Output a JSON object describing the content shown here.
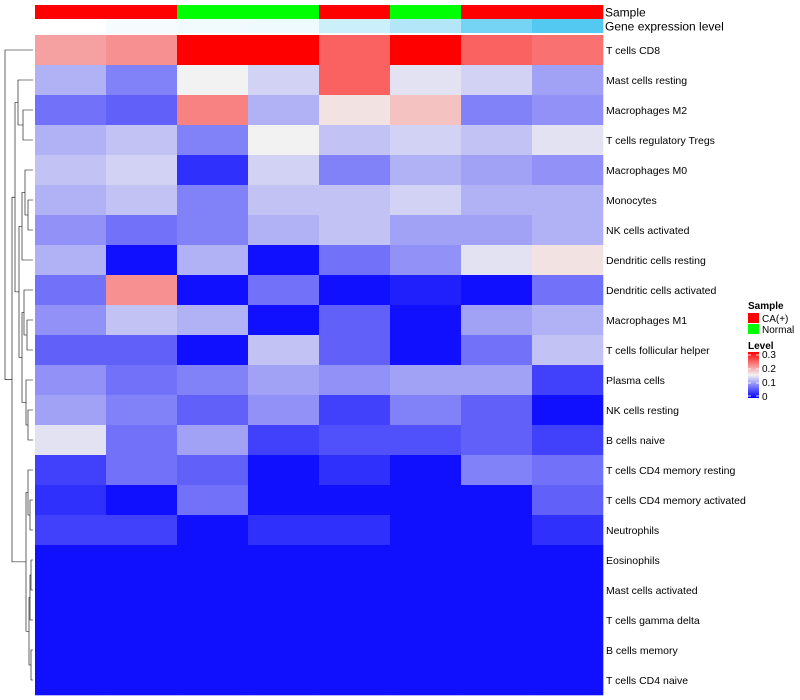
{
  "chart_data": {
    "type": "heatmap",
    "title": "",
    "annotation_tracks": [
      {
        "name": "Sample",
        "values": [
          "CA(+)",
          "CA(+)",
          "Normal",
          "Normal",
          "CA(+)",
          "Normal",
          "CA(+)",
          "CA(+)"
        ]
      },
      {
        "name": "Gene expression level",
        "values": [
          "0.00",
          "0.05",
          "0.08",
          "0.10",
          "0.30",
          "0.45",
          "0.80",
          "1.00"
        ]
      }
    ],
    "rows": [
      "T cells CD8",
      "Mast cells resting",
      "Macrophages M2",
      "T cells regulatory  Tregs",
      "Macrophages M0",
      "Monocytes",
      "NK cells activated",
      "Dendritic cells resting",
      "Dendritic cells activated",
      "Macrophages M1",
      "T cells follicular helper",
      "Plasma cells",
      "NK cells resting",
      "B cells naive",
      "T cells CD4 memory resting",
      "T cells CD4 memory activated",
      "Neutrophils",
      "Eosinophils",
      "Mast cells activated",
      "T cells gamma delta",
      "B cells memory",
      "T cells CD4 naive"
    ],
    "columns": 8,
    "values": [
      [
        0.2,
        0.21,
        0.3,
        0.3,
        0.24,
        0.3,
        0.24,
        0.23
      ],
      [
        0.11,
        0.08,
        0.15,
        0.13,
        0.24,
        0.14,
        0.13,
        0.1
      ],
      [
        0.07,
        0.06,
        0.22,
        0.11,
        0.16,
        0.18,
        0.08,
        0.09
      ],
      [
        0.11,
        0.12,
        0.08,
        0.15,
        0.12,
        0.13,
        0.12,
        0.14
      ],
      [
        0.12,
        0.13,
        0.03,
        0.13,
        0.08,
        0.11,
        0.1,
        0.09
      ],
      [
        0.11,
        0.12,
        0.08,
        0.12,
        0.12,
        0.13,
        0.11,
        0.11
      ],
      [
        0.09,
        0.07,
        0.08,
        0.11,
        0.12,
        0.1,
        0.1,
        0.11
      ],
      [
        0.11,
        0.01,
        0.11,
        0.01,
        0.07,
        0.09,
        0.14,
        0.16
      ],
      [
        0.07,
        0.21,
        0.01,
        0.07,
        0.01,
        0.02,
        0.01,
        0.07
      ],
      [
        0.09,
        0.12,
        0.11,
        0.01,
        0.06,
        0.01,
        0.1,
        0.11
      ],
      [
        0.06,
        0.06,
        0.01,
        0.12,
        0.06,
        0.01,
        0.07,
        0.12
      ],
      [
        0.09,
        0.07,
        0.08,
        0.1,
        0.09,
        0.1,
        0.1,
        0.04
      ],
      [
        0.1,
        0.08,
        0.06,
        0.09,
        0.04,
        0.08,
        0.06,
        0.01
      ],
      [
        0.14,
        0.07,
        0.1,
        0.04,
        0.05,
        0.05,
        0.06,
        0.04
      ],
      [
        0.04,
        0.07,
        0.06,
        0.01,
        0.03,
        0.01,
        0.08,
        0.07
      ],
      [
        0.03,
        0.01,
        0.07,
        0.01,
        0.01,
        0.01,
        0.01,
        0.06
      ],
      [
        0.04,
        0.04,
        0.01,
        0.03,
        0.03,
        0.01,
        0.01,
        0.03
      ],
      [
        0.01,
        0.01,
        0.01,
        0.01,
        0.01,
        0.01,
        0.01,
        0.01
      ],
      [
        0.01,
        0.01,
        0.01,
        0.01,
        0.01,
        0.01,
        0.01,
        0.01
      ],
      [
        0.01,
        0.01,
        0.01,
        0.01,
        0.01,
        0.01,
        0.01,
        0.01
      ],
      [
        0.01,
        0.01,
        0.01,
        0.01,
        0.01,
        0.01,
        0.01,
        0.01
      ],
      [
        0.01,
        0.01,
        0.01,
        0.01,
        0.01,
        0.01,
        0.01,
        0.01
      ]
    ],
    "color_scale": {
      "min": 0,
      "mid": 0.15,
      "max": 0.3,
      "low_color": "#0000ff",
      "mid_color": "#f2f2f2",
      "high_color": "#ff0000"
    },
    "track_colors": {
      "Sample": {
        "CA(+)": "#ff0000",
        "Normal": "#00ff00"
      },
      "Gene expression level": {
        "low": "#ffffff",
        "high": "#53c8f0"
      }
    },
    "legend": {
      "position": "right",
      "sample_title": "Sample",
      "sample_entries": [
        {
          "label": "CA(+)",
          "color": "#ff0000"
        },
        {
          "label": "Normal",
          "color": "#00ff00"
        }
      ],
      "level_title": "Level",
      "level_ticks": [
        "0.3",
        "0.2",
        "0.1",
        "0"
      ]
    },
    "dendrogram": "rows"
  }
}
